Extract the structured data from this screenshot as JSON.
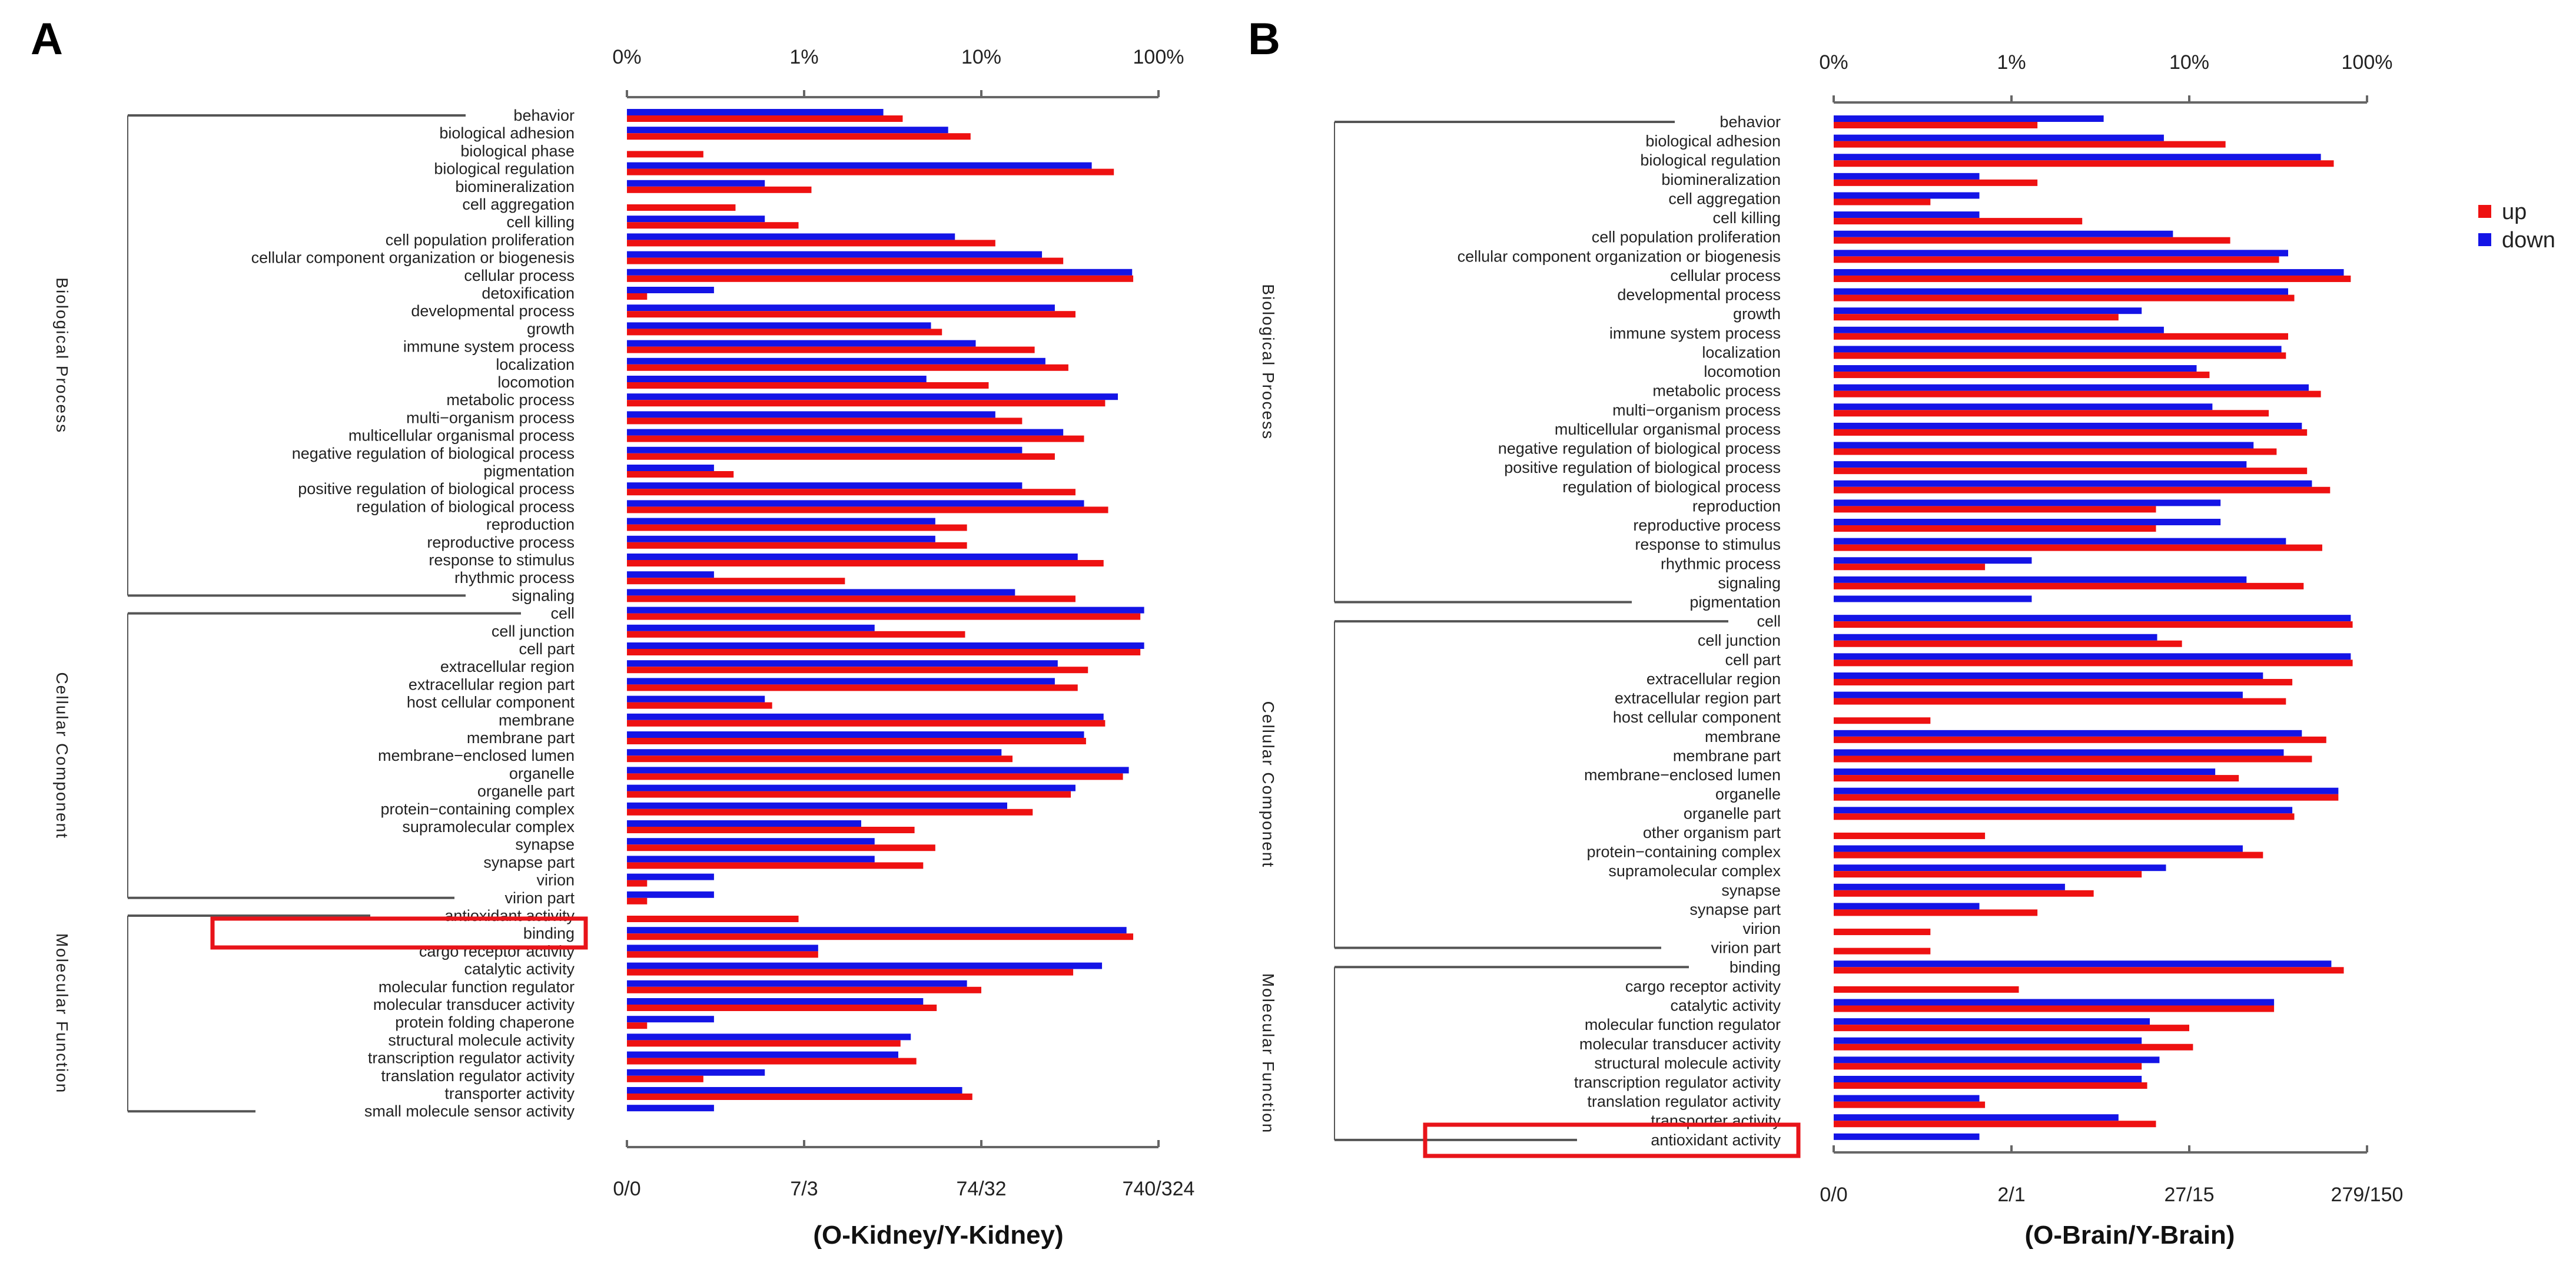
{
  "colors": {
    "up": "#ee1111",
    "down": "#1414e6",
    "highlight": "#e8141a",
    "axis": "#666666",
    "bracket": "#555555"
  },
  "legend": [
    {
      "key": "up",
      "label": "up"
    },
    {
      "key": "down",
      "label": "down"
    }
  ],
  "chart_data": [
    {
      "type": "bar",
      "orientation": "horizontal",
      "scale": "log",
      "panel_label": "A",
      "title": "(O-Kidney/Y-Kidney)",
      "top_ticks": [
        "0%",
        "1%",
        "10%",
        "100%"
      ],
      "bottom_ticks": [
        "0/0",
        "7/3",
        "74/32",
        "740/324"
      ],
      "value_unit": "percent of genes",
      "highlighted_term": "antioxidant activity",
      "groups": [
        {
          "name": "Biological Process",
          "terms": [
            {
              "term": "behavior",
              "up": 3.6,
              "down": 2.8
            },
            {
              "term": "biological adhesion",
              "up": 8.7,
              "down": 6.5
            },
            {
              "term": "biological phase",
              "up": 0.27,
              "down": null
            },
            {
              "term": "biological regulation",
              "up": 56,
              "down": 42
            },
            {
              "term": "biomineralization",
              "up": 1.1,
              "down": 0.6
            },
            {
              "term": "cell aggregation",
              "up": 0.41,
              "down": null
            },
            {
              "term": "cell killing",
              "up": 0.93,
              "down": 0.6
            },
            {
              "term": "cell population proliferation",
              "up": 12,
              "down": 7.1
            },
            {
              "term": "cellular component organization or biogenesis",
              "up": 29,
              "down": 22
            },
            {
              "term": "cellular process",
              "up": 72,
              "down": 71
            },
            {
              "term": "detoxification",
              "up": 0.13,
              "down": 0.31
            },
            {
              "term": "developmental process",
              "up": 34,
              "down": 26
            },
            {
              "term": "growth",
              "up": 6.0,
              "down": 5.2
            },
            {
              "term": "immune system process",
              "up": 20,
              "down": 9.3
            },
            {
              "term": "localization",
              "up": 31,
              "down": 23
            },
            {
              "term": "locomotion",
              "up": 11,
              "down": 4.9
            },
            {
              "term": "metabolic process",
              "up": 50,
              "down": 59
            },
            {
              "term": "multi−organism process",
              "up": 17,
              "down": 12
            },
            {
              "term": "multicellular organismal process",
              "up": 38,
              "down": 29
            },
            {
              "term": "negative regulation of biological process",
              "up": 26,
              "down": 17
            },
            {
              "term": "pigmentation",
              "up": 0.4,
              "down": 0.31
            },
            {
              "term": "positive regulation of biological process",
              "up": 34,
              "down": 17
            },
            {
              "term": "regulation of biological process",
              "up": 52,
              "down": 38
            },
            {
              "term": "reproduction",
              "up": 8.3,
              "down": 5.5
            },
            {
              "term": "reproductive process",
              "up": 8.3,
              "down": 5.5
            },
            {
              "term": "response to stimulus",
              "up": 49,
              "down": 35
            },
            {
              "term": "rhythmic process",
              "up": 1.7,
              "down": 0.31
            },
            {
              "term": "signaling",
              "up": 34,
              "down": 15.5
            }
          ]
        },
        {
          "name": "Cellular Component",
          "terms": [
            {
              "term": "cell",
              "up": 79,
              "down": 83
            },
            {
              "term": "cell junction",
              "up": 8.1,
              "down": 2.5
            },
            {
              "term": "cell part",
              "up": 79,
              "down": 83
            },
            {
              "term": "extracellular region",
              "up": 40,
              "down": 27
            },
            {
              "term": "extracellular region part",
              "up": 35,
              "down": 26
            },
            {
              "term": "host cellular component",
              "up": 0.66,
              "down": 0.6
            },
            {
              "term": "membrane",
              "up": 50,
              "down": 49
            },
            {
              "term": "membrane part",
              "up": 39,
              "down": 38
            },
            {
              "term": "membrane−enclosed lumen",
              "up": 15,
              "down": 13
            },
            {
              "term": "organelle",
              "up": 63,
              "down": 68
            },
            {
              "term": "organelle part",
              "up": 32,
              "down": 34
            },
            {
              "term": "protein−containing complex",
              "up": 19.5,
              "down": 14
            },
            {
              "term": "supramolecular complex",
              "up": 4.2,
              "down": 2.1
            },
            {
              "term": "synapse",
              "up": 5.5,
              "down": 2.5
            },
            {
              "term": "synapse part",
              "up": 4.7,
              "down": 2.5
            },
            {
              "term": "virion",
              "up": 0.13,
              "down": 0.31
            },
            {
              "term": "virion part",
              "up": 0.13,
              "down": 0.31
            }
          ]
        },
        {
          "name": "Molecular Function",
          "terms": [
            {
              "term": "antioxidant activity",
              "up": 0.93,
              "down": null
            },
            {
              "term": "binding",
              "up": 72,
              "down": 66
            },
            {
              "term": "cargo receptor activity",
              "up": 1.2,
              "down": 1.2
            },
            {
              "term": "catalytic activity",
              "up": 33,
              "down": 48
            },
            {
              "term": "molecular function regulator",
              "up": 10,
              "down": 8.3
            },
            {
              "term": "molecular transducer activity",
              "up": 5.6,
              "down": 4.7
            },
            {
              "term": "protein folding chaperone",
              "up": 0.13,
              "down": 0.31
            },
            {
              "term": "structural molecule activity",
              "up": 3.5,
              "down": 4.0
            },
            {
              "term": "transcription regulator activity",
              "up": 4.3,
              "down": 3.4
            },
            {
              "term": "translation regulator activity",
              "up": 0.27,
              "down": 0.6
            },
            {
              "term": "transporter activity",
              "up": 8.9,
              "down": 7.8
            },
            {
              "term": "small molecule sensor activity",
              "up": null,
              "down": 0.31
            }
          ]
        }
      ]
    },
    {
      "type": "bar",
      "orientation": "horizontal",
      "scale": "log",
      "panel_label": "B",
      "title": "(O-Brain/Y-Brain)",
      "top_ticks": [
        "0%",
        "1%",
        "10%",
        "100%"
      ],
      "bottom_ticks": [
        "0/0",
        "2/1",
        "27/15",
        "279/150"
      ],
      "value_unit": "percent of genes",
      "highlighted_term": "antioxidant activity",
      "groups": [
        {
          "name": "Biological Process",
          "terms": [
            {
              "term": "behavior",
              "up": 1.4,
              "down": 3.3
            },
            {
              "term": "biological adhesion",
              "up": 16,
              "down": 7.2
            },
            {
              "term": "biological regulation",
              "up": 65,
              "down": 55
            },
            {
              "term": "biomineralization",
              "up": 1.4,
              "down": 0.66
            },
            {
              "term": "cell aggregation",
              "up": 0.35,
              "down": 0.66
            },
            {
              "term": "cell killing",
              "up": 2.5,
              "down": 0.66
            },
            {
              "term": "cell population proliferation",
              "up": 17,
              "down": 8.1
            },
            {
              "term": "cellular component organization or biogenesis",
              "up": 32,
              "down": 36
            },
            {
              "term": "cellular process",
              "up": 81,
              "down": 74
            },
            {
              "term": "developmental process",
              "up": 39,
              "down": 36
            },
            {
              "term": "growth",
              "up": 4.0,
              "down": 5.4
            },
            {
              "term": "immune system process",
              "up": 36,
              "down": 7.2
            },
            {
              "term": "localization",
              "up": 35,
              "down": 33
            },
            {
              "term": "locomotion",
              "up": 13,
              "down": 11
            },
            {
              "term": "metabolic process",
              "up": 55,
              "down": 47
            },
            {
              "term": "multi−organism process",
              "up": 28,
              "down": 13.5
            },
            {
              "term": "multicellular organismal process",
              "up": 46,
              "down": 43
            },
            {
              "term": "negative regulation of biological process",
              "up": 31,
              "down": 23
            },
            {
              "term": "positive regulation of biological process",
              "up": 46,
              "down": 21
            },
            {
              "term": "regulation of biological process",
              "up": 62,
              "down": 49
            },
            {
              "term": "reproduction",
              "up": 6.5,
              "down": 15
            },
            {
              "term": "reproductive process",
              "up": 6.5,
              "down": 15
            },
            {
              "term": "response to stimulus",
              "up": 56,
              "down": 35
            },
            {
              "term": "rhythmic process",
              "up": 0.71,
              "down": 1.3
            },
            {
              "term": "signaling",
              "up": 44,
              "down": 21
            },
            {
              "term": "pigmentation",
              "up": null,
              "down": 1.3
            }
          ]
        },
        {
          "name": "Cellular Component",
          "terms": [
            {
              "term": "cell",
              "up": 83,
              "down": 81
            },
            {
              "term": "cell junction",
              "up": 9.1,
              "down": 6.6
            },
            {
              "term": "cell part",
              "up": 83,
              "down": 81
            },
            {
              "term": "extracellular region",
              "up": 38,
              "down": 26
            },
            {
              "term": "extracellular region part",
              "up": 35,
              "down": 20
            },
            {
              "term": "host cellular component",
              "up": 0.35,
              "down": null
            },
            {
              "term": "membrane",
              "up": 59,
              "down": 43
            },
            {
              "term": "membrane part",
              "up": 49,
              "down": 34
            },
            {
              "term": "membrane−enclosed lumen",
              "up": 19,
              "down": 14
            },
            {
              "term": "organelle",
              "up": 69,
              "down": 69
            },
            {
              "term": "organelle part",
              "up": 39,
              "down": 38
            },
            {
              "term": "other organism part",
              "up": 0.71,
              "down": null
            },
            {
              "term": "protein−containing complex",
              "up": 26,
              "down": 20
            },
            {
              "term": "supramolecular complex",
              "up": 5.4,
              "down": 7.4
            },
            {
              "term": "synapse",
              "up": 2.9,
              "down": 2.0
            },
            {
              "term": "synapse part",
              "up": 1.4,
              "down": 0.66
            },
            {
              "term": "virion",
              "up": 0.35,
              "down": null
            },
            {
              "term": "virion part",
              "up": 0.35,
              "down": null
            }
          ]
        },
        {
          "name": "Molecular Function",
          "terms": [
            {
              "term": "binding",
              "up": 74,
              "down": 63
            },
            {
              "term": "cargo receptor activity",
              "up": 1.1,
              "down": null
            },
            {
              "term": "catalytic activity",
              "up": 30,
              "down": 30
            },
            {
              "term": "molecular function regulator",
              "up": 10,
              "down": 6.0
            },
            {
              "term": "molecular transducer activity",
              "up": 10.5,
              "down": 5.4
            },
            {
              "term": "structural molecule activity",
              "up": 5.4,
              "down": 6.8
            },
            {
              "term": "transcription regulator activity",
              "up": 5.8,
              "down": 5.4
            },
            {
              "term": "translation regulator activity",
              "up": 0.71,
              "down": 0.66
            },
            {
              "term": "transporter activity",
              "up": 6.5,
              "down": 4.0
            },
            {
              "term": "antioxidant activity",
              "up": null,
              "down": 0.66
            }
          ]
        }
      ]
    }
  ]
}
